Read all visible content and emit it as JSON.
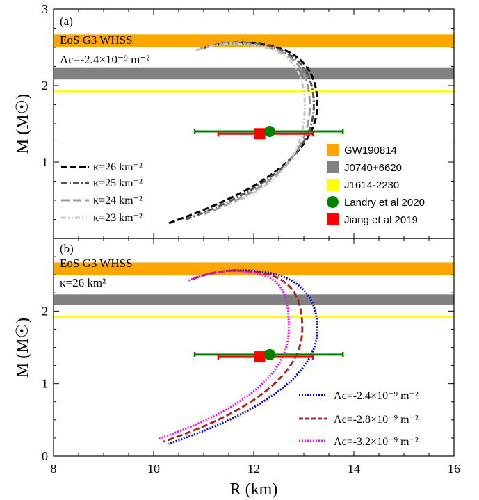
{
  "chart_data": [
    {
      "type": "line",
      "panel_label": "(a)",
      "xlabel": "R (km)",
      "ylabel": "M (M☉)",
      "xlim": [
        8,
        16
      ],
      "ylim": [
        0,
        3
      ],
      "xticks": [
        "8",
        "10",
        "12",
        "14",
        "16"
      ],
      "yticks": [
        "1",
        "2",
        "3"
      ],
      "annotations": [
        "EoS G3 WHSS",
        "Λc=-2.4×10⁻⁹ m⁻²"
      ],
      "bands": [
        {
          "name": "GW190814",
          "ymin": 2.5,
          "ymax": 2.67,
          "color": "#ffa500"
        },
        {
          "name": "J0740+6620",
          "ymin": 2.08,
          "ymax": 2.23,
          "color": "#808080"
        },
        {
          "name": "J1614-2230",
          "ymin": 1.905,
          "ymax": 1.935,
          "color": "#ffff00"
        }
      ],
      "markers": [
        {
          "name": "Landry et al 2020",
          "x": 12.32,
          "y": 1.4,
          "xerr": [
            10.82,
            13.78
          ],
          "color": "#008000",
          "shape": "circle"
        },
        {
          "name": "Jiang et al 2019",
          "x": 12.12,
          "y": 1.37,
          "xerr": [
            11.29,
            13.18
          ],
          "color": "#ff0000",
          "shape": "square"
        }
      ],
      "series": [
        {
          "name": "κ=26 km⁻²",
          "color": "#000000",
          "style": "dashed",
          "curve": {
            "r_ref": 10.85,
            "m_ref": 2.46,
            "r_peak": 11.85,
            "m_peak": 2.56,
            "r_right": 13.27,
            "m_right": 1.75,
            "r_low": 10.3,
            "m_low": 0.2
          }
        },
        {
          "name": "κ=25 km⁻²",
          "color": "#555555",
          "style": "dashdot",
          "curve": {
            "r_ref": 10.85,
            "m_ref": 2.46,
            "r_peak": 11.8,
            "m_peak": 2.555,
            "r_right": 13.2,
            "m_right": 1.74,
            "r_low": 10.6,
            "m_low": 0.24
          }
        },
        {
          "name": "κ=24 km⁻²",
          "color": "#999999",
          "style": "longdash",
          "curve": {
            "r_ref": 10.85,
            "m_ref": 2.46,
            "r_peak": 11.75,
            "m_peak": 2.55,
            "r_right": 13.12,
            "m_right": 1.74,
            "r_low": 11.0,
            "m_low": 0.32
          }
        },
        {
          "name": "κ=23 km⁻²",
          "color": "#c8c8c8",
          "style": "dashdotdot",
          "curve": {
            "r_ref": 10.85,
            "m_ref": 2.46,
            "r_peak": 11.7,
            "m_peak": 2.545,
            "r_right": 13.02,
            "m_right": 1.74,
            "r_low": 11.4,
            "m_low": 0.42
          }
        }
      ],
      "legend_right": [
        "GW190814",
        "J0740+6620",
        "J1614-2230",
        "Landry et al 2020",
        "Jiang et al 2019"
      ]
    },
    {
      "type": "line",
      "panel_label": "(b)",
      "xlabel": "R (km)",
      "ylabel": "M (M☉)",
      "xlim": [
        8,
        16
      ],
      "ylim": [
        0,
        3
      ],
      "xticks": [
        "8",
        "10",
        "12",
        "14",
        "16"
      ],
      "yticks": [
        "0",
        "1",
        "2"
      ],
      "annotations": [
        "EoS G3 WHSS",
        "κ=26 km²"
      ],
      "bands": [
        {
          "name": "GW190814",
          "ymin": 2.5,
          "ymax": 2.67,
          "color": "#ffa500"
        },
        {
          "name": "J0740+6620",
          "ymin": 2.08,
          "ymax": 2.23,
          "color": "#808080"
        },
        {
          "name": "J1614-2230",
          "ymin": 1.905,
          "ymax": 1.935,
          "color": "#ffff00"
        }
      ],
      "markers": [
        {
          "name": "Landry et al 2020",
          "x": 12.32,
          "y": 1.4,
          "xerr": [
            10.82,
            13.78
          ],
          "color": "#008000",
          "shape": "circle"
        },
        {
          "name": "Jiang et al 2019",
          "x": 12.12,
          "y": 1.37,
          "xerr": [
            11.29,
            13.18
          ],
          "color": "#ff0000",
          "shape": "square"
        }
      ],
      "series": [
        {
          "name": "Λc=-2.4×10⁻⁹ m⁻²",
          "color": "#0000cc",
          "style": "dotted",
          "curve": {
            "r_ref": 10.85,
            "m_ref": 2.46,
            "r_peak": 11.85,
            "m_peak": 2.56,
            "r_right": 13.27,
            "m_right": 1.75,
            "r_low": 10.3,
            "m_low": 0.17
          }
        },
        {
          "name": "Λc=-2.8×10⁻⁹ m⁻²",
          "color": "#a52a2a",
          "style": "dashed",
          "curve": {
            "r_ref": 10.78,
            "m_ref": 2.44,
            "r_peak": 11.75,
            "m_peak": 2.555,
            "r_right": 12.97,
            "m_right": 1.75,
            "r_low": 10.2,
            "m_low": 0.2
          }
        },
        {
          "name": "Λc=-3.2×10⁻⁹ m⁻²",
          "color": "#ff00ff",
          "style": "dotted",
          "curve": {
            "r_ref": 10.7,
            "m_ref": 2.42,
            "r_peak": 11.65,
            "m_peak": 2.55,
            "r_right": 12.7,
            "m_right": 1.75,
            "r_low": 10.1,
            "m_low": 0.24
          }
        }
      ]
    }
  ]
}
